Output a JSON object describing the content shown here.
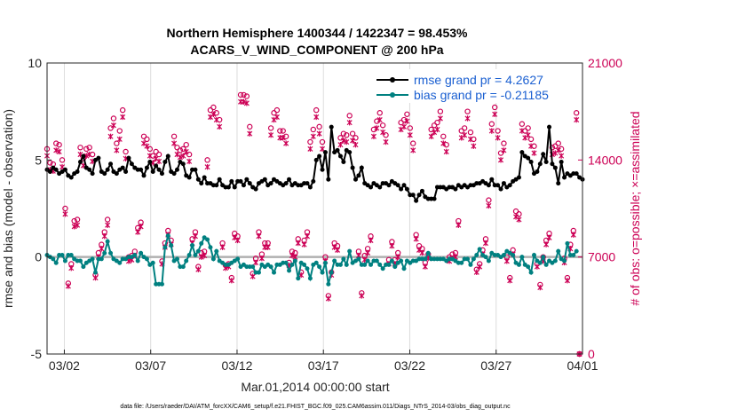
{
  "chart_data": {
    "type": "line",
    "title": "Northern Hemisphere 1400344 / 1422347 = 98.453%",
    "subtitle": "ACARS_V_WIND_COMPONENT @ 200 hPa",
    "xlabel": "Mar.01,2014 00:00:00 start",
    "ylabel": "rmse and bias (model - observation)",
    "y2label": "# of obs: o=possible; ×=assimilated",
    "footer": "data file: /Users/raeder/DAI/ATM_forcXX/CAM6_setup/f.e21.FHIST_BGC.f09_025.CAM6assim.011/Diags_NTrS_2014-03/obs_diag_output.nc",
    "xlim": [
      0,
      31
    ],
    "ylim": [
      -5,
      10
    ],
    "y2lim": [
      0,
      21000
    ],
    "x_ticks": [
      {
        "x": 1,
        "label": "03/02"
      },
      {
        "x": 6,
        "label": "03/07"
      },
      {
        "x": 11,
        "label": "03/12"
      },
      {
        "x": 16,
        "label": "03/17"
      },
      {
        "x": 21,
        "label": "03/22"
      },
      {
        "x": 26,
        "label": "03/27"
      },
      {
        "x": 31,
        "label": "04/01"
      }
    ],
    "y_ticks": [
      {
        "v": -5,
        "label": "-5"
      },
      {
        "v": 0,
        "label": "0"
      },
      {
        "v": 5,
        "label": "5"
      },
      {
        "v": 10,
        "label": "10"
      }
    ],
    "y2_ticks": [
      {
        "v": 0,
        "label": "0"
      },
      {
        "v": 7000,
        "label": "7000"
      },
      {
        "v": 14000,
        "label": "14000"
      },
      {
        "v": 21000,
        "label": "21000"
      }
    ],
    "legend": {
      "placement": "top-right",
      "entries": [
        {
          "label": "rmse grand pr = 4.2627",
          "color": "#000000"
        },
        {
          "label": "bias grand pr = -0.21185",
          "color": "#008080"
        }
      ]
    },
    "series": [
      {
        "name": "rmse",
        "color": "#000000",
        "values": [
          4.5,
          4.4,
          4.6,
          4.5,
          4.3,
          4.4,
          4.5,
          4.2,
          4.1,
          4.3,
          4.4,
          4.9,
          5.2,
          4.6,
          4.5,
          4.3,
          5.0,
          5.1,
          4.4,
          4.3,
          4.5,
          4.8,
          4.4,
          4.3,
          4.5,
          4.6,
          4.4,
          5.1,
          4.8,
          4.6,
          4.5,
          4.5,
          4.2,
          4.6,
          4.9,
          4.4,
          4.7,
          4.5,
          4.3,
          4.9,
          5.2,
          4.4,
          4.3,
          4.5,
          4.9,
          4.8,
          4.2,
          4.1,
          4.5,
          4.5,
          4.0,
          3.8,
          4.1,
          3.8,
          3.8,
          3.7,
          3.7,
          4.0,
          3.7,
          3.6,
          3.6,
          3.9,
          3.6,
          3.9,
          3.9,
          3.7,
          4.0,
          3.8,
          3.6,
          3.5,
          3.8,
          3.9,
          4.0,
          3.7,
          3.8,
          4.0,
          3.9,
          3.8,
          3.7,
          3.8,
          4.0,
          3.7,
          3.8,
          3.7,
          3.7,
          3.8,
          3.8,
          3.6,
          3.9,
          5.0,
          5.2,
          4.5,
          5.4,
          4.0,
          6.7,
          5.4,
          5.5,
          5.2,
          4.9,
          5.5,
          5.4,
          4.6,
          4.0,
          4.2,
          4.6,
          3.8,
          3.7,
          3.6,
          3.8,
          3.7,
          3.6,
          3.8,
          3.8,
          3.7,
          3.9,
          3.8,
          3.7,
          3.5,
          3.7,
          3.5,
          3.2,
          3.2,
          2.9,
          3.2,
          3.4,
          3.1,
          3.0,
          3.0,
          3.0,
          3.6,
          3.6,
          3.6,
          3.5,
          3.6,
          3.6,
          3.5,
          3.7,
          3.6,
          3.7,
          3.6,
          3.7,
          3.7,
          3.8,
          3.8,
          3.9,
          3.8,
          3.7,
          4.0,
          3.7,
          3.7,
          3.5,
          3.8,
          3.6,
          3.7,
          3.9,
          4.0,
          4.1,
          5.4,
          5.2,
          5.1,
          4.9,
          4.3,
          4.4,
          4.8,
          5.3,
          4.9,
          6.7,
          4.8,
          4.6,
          3.8,
          4.9,
          4.1,
          4.3,
          4.2,
          4.3,
          4.3,
          4.1,
          4.0
        ]
      },
      {
        "name": "bias",
        "color": "#008080",
        "values": [
          0.1,
          0.0,
          -0.1,
          -0.3,
          0.1,
          0.1,
          -0.2,
          0.1,
          0.1,
          -0.1,
          -0.2,
          -0.2,
          -0.5,
          -0.3,
          -0.2,
          -0.1,
          -0.8,
          -0.1,
          -0.1,
          0.2,
          0.8,
          0.2,
          -0.1,
          -0.2,
          -0.3,
          -0.1,
          -0.1,
          0.0,
          0.0,
          0.1,
          -0.2,
          0.2,
          0.0,
          -0.1,
          -0.4,
          -0.3,
          -1.4,
          -1.4,
          -1.4,
          0.5,
          1.1,
          0.6,
          -0.2,
          -0.1,
          -0.5,
          -0.5,
          -0.2,
          0.1,
          0.6,
          0.1,
          0.3,
          0.7,
          1.0,
          0.9,
          0.5,
          -0.1,
          0.3,
          -0.2,
          -0.3,
          -0.4,
          -0.4,
          -0.3,
          -0.2,
          -0.1,
          -0.5,
          -0.4,
          -0.5,
          -0.5,
          -0.5,
          -0.8,
          -0.8,
          -0.4,
          -0.5,
          -0.4,
          -0.5,
          -0.8,
          -0.4,
          -0.4,
          -0.3,
          -0.3,
          -0.7,
          -0.4,
          -0.2,
          -1.1,
          -0.3,
          -0.4,
          -0.6,
          -1.1,
          -0.4,
          -0.3,
          -0.5,
          -0.8,
          -0.3,
          -1.4,
          -0.8,
          -0.2,
          -0.4,
          -0.4,
          -0.1,
          -0.4,
          0.3,
          -0.3,
          -0.2,
          -0.1,
          -0.4,
          -0.4,
          -0.2,
          -0.4,
          -0.2,
          -0.2,
          -0.4,
          -0.6,
          -0.4,
          -0.4,
          -0.2,
          -0.5,
          -0.3,
          -0.2,
          -0.6,
          -0.2,
          -0.3,
          -0.2,
          -0.2,
          -0.1,
          -0.1,
          -0.1,
          0.2,
          -0.1,
          -0.1,
          -0.1,
          -0.1,
          -0.1,
          -0.2,
          -0.1,
          -0.1,
          -0.2,
          -0.3,
          -0.3,
          -0.1,
          -0.1,
          -0.4,
          -0.1,
          0.1,
          0.4,
          0.1,
          0.0,
          -0.2,
          0.2,
          0.1,
          0.1,
          0.0,
          0.1,
          0.3,
          0.2,
          0.1,
          -0.3,
          -0.4,
          0.0,
          -0.4,
          -0.5,
          -0.8,
          0.1,
          -0.2,
          -0.3,
          0.0,
          -0.4,
          -0.2,
          -0.3,
          -0.2,
          0.3,
          -0.1,
          -0.2,
          0.7,
          0.1,
          0.1,
          0.3
        ]
      },
      {
        "name": "possible",
        "color": "#cc0055",
        "axis": "right",
        "marker": "o",
        "values": [
          14800,
          13800,
          13700,
          15200,
          15100,
          14000,
          10500,
          5100,
          6500,
          9600,
          9700,
          14900,
          14100,
          14800,
          14900,
          14400,
          5700,
          7300,
          7900,
          8800,
          9700,
          16300,
          17000,
          15200,
          16100,
          17600,
          14600,
          7000,
          7100,
          7400,
          9100,
          9500,
          15700,
          15500,
          14800,
          14300,
          14600,
          14400,
          6700,
          8000,
          8900,
          8200,
          15700,
          14900,
          14700,
          14800,
          15100,
          14400,
          8300,
          8800,
          6300,
          7300,
          7400,
          14000,
          17600,
          17800,
          17400,
          16900,
          8000,
          6400,
          6500,
          5500,
          8700,
          8500,
          18700,
          18700,
          18600,
          16400,
          5800,
          6900,
          8800,
          7200,
          8000,
          8000,
          16300,
          17400,
          17600,
          16100,
          16100,
          15700,
          6600,
          7400,
          7300,
          8300,
          5900,
          8200,
          8800,
          15300,
          16200,
          17600,
          16400,
          15300,
          7000,
          4200,
          5900,
          8000,
          7800,
          15600,
          15900,
          15800,
          17200,
          15900,
          15600,
          7400,
          4400,
          7100,
          7600,
          8500,
          16200,
          16800,
          17400,
          16500,
          15800,
          6800,
          8100,
          6800,
          7300,
          16700,
          16900,
          17300,
          16300,
          15200,
          8600,
          7800,
          7600,
          6600,
          7200,
          16200,
          16500,
          16700,
          17500,
          15700,
          15100,
          7000,
          7200,
          7300,
          9600,
          16100,
          16300,
          17500,
          16000,
          15500,
          6100,
          6500,
          7500,
          8300,
          11100,
          16600,
          17800,
          16100,
          14500,
          15200,
          7000,
          5500,
          7500,
          10300,
          10100,
          16600,
          16100,
          16300,
          15500,
          15000,
          6500,
          5000,
          7000,
          8200,
          8700,
          14900,
          15000,
          15200,
          14800,
          6900,
          5500,
          7900,
          8900,
          17400,
          0
        ]
      },
      {
        "name": "assimilated",
        "color": "#cc0055",
        "axis": "right",
        "marker": "x",
        "values": [
          14300,
          13300,
          13200,
          14700,
          14600,
          13500,
          10100,
          4900,
          6200,
          9200,
          9300,
          14400,
          13600,
          14300,
          14400,
          13900,
          5500,
          7000,
          7600,
          8500,
          9300,
          15700,
          16500,
          14700,
          15500,
          17100,
          14100,
          6700,
          6800,
          7100,
          8800,
          9200,
          15200,
          15000,
          14300,
          13800,
          14100,
          13900,
          6500,
          7700,
          8600,
          7900,
          15200,
          14400,
          14200,
          14300,
          14600,
          13900,
          8000,
          8500,
          6100,
          7000,
          7100,
          13500,
          17100,
          17300,
          16900,
          16400,
          7700,
          6200,
          6300,
          5300,
          8400,
          8200,
          18200,
          18200,
          18100,
          15900,
          5600,
          6600,
          8500,
          6900,
          7700,
          7700,
          15800,
          16900,
          17100,
          15600,
          15600,
          15200,
          6400,
          7100,
          7000,
          8000,
          5700,
          7900,
          8500,
          14800,
          15700,
          17100,
          15900,
          14800,
          6700,
          4000,
          5700,
          7700,
          7500,
          15100,
          15400,
          15300,
          16700,
          15400,
          15100,
          7100,
          4200,
          6800,
          7300,
          8200,
          15700,
          16300,
          16900,
          16000,
          15300,
          6500,
          7800,
          6500,
          7000,
          16200,
          16400,
          16800,
          15800,
          14700,
          8300,
          7500,
          7300,
          6300,
          6900,
          15700,
          16000,
          16200,
          17000,
          15200,
          14600,
          6700,
          6900,
          7000,
          9300,
          15600,
          15800,
          17000,
          15500,
          15000,
          5900,
          6300,
          7200,
          8000,
          10700,
          16100,
          17300,
          15600,
          14000,
          14700,
          6700,
          5300,
          7200,
          9900,
          9700,
          16100,
          15600,
          15800,
          15000,
          14500,
          6300,
          4800,
          6700,
          7900,
          8400,
          14400,
          14500,
          14700,
          14300,
          6600,
          5300,
          7600,
          8600,
          16900,
          0
        ]
      }
    ]
  }
}
